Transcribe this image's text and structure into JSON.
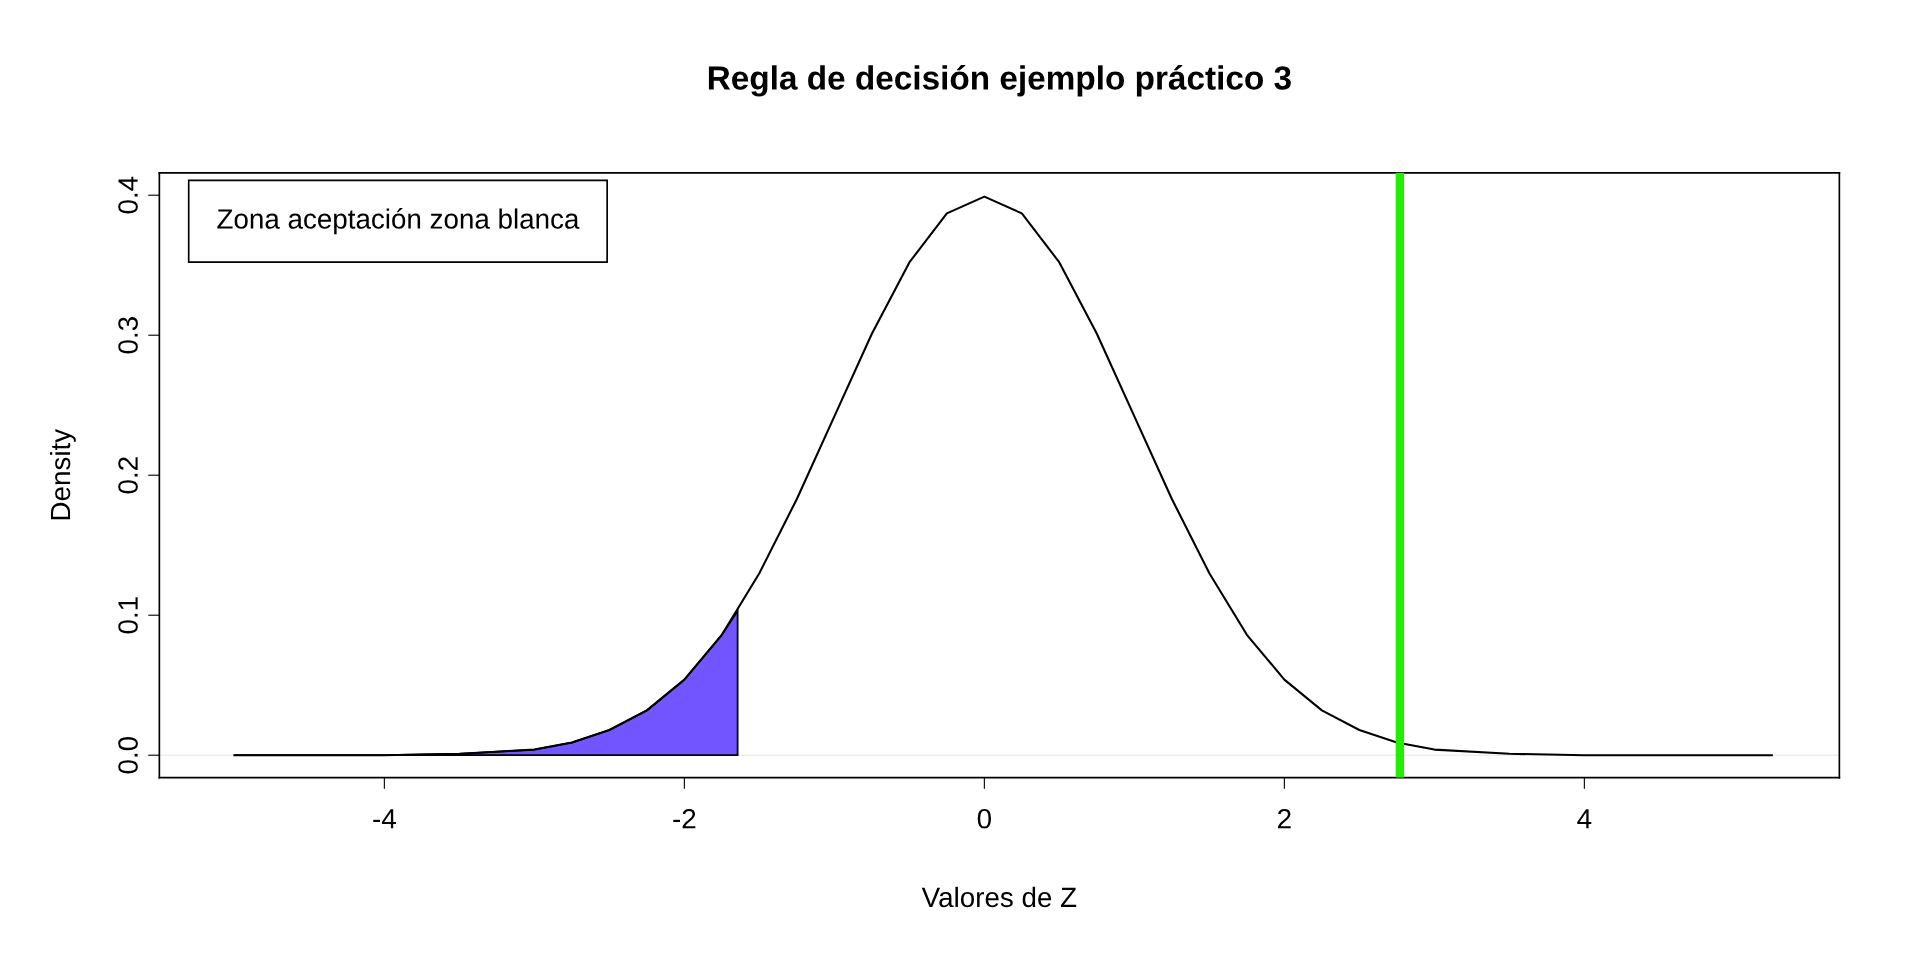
{
  "chart_data": {
    "type": "line",
    "title": "Regla de decisión ejemplo práctico 3",
    "xlabel": "Valores de Z",
    "ylabel": "Density",
    "series": [
      {
        "color": "#000000",
        "x": [
          -5,
          -4.5,
          -4,
          -3.5,
          -3,
          -2.75,
          -2.5,
          -2.25,
          -2,
          -1.75,
          -1.5,
          -1.25,
          -1,
          -0.75,
          -0.5,
          -0.25,
          0,
          0.25,
          0.5,
          0.75,
          1,
          1.25,
          1.5,
          1.75,
          2,
          2.25,
          2.5,
          2.75,
          3,
          3.5,
          4,
          4.5,
          5,
          5.25
        ],
        "values": [
          0,
          0,
          0,
          0.001,
          0.004,
          0.009,
          0.018,
          0.032,
          0.054,
          0.086,
          0.13,
          0.183,
          0.242,
          0.301,
          0.352,
          0.387,
          0.399,
          0.387,
          0.352,
          0.301,
          0.242,
          0.183,
          0.13,
          0.086,
          0.054,
          0.032,
          0.018,
          0.009,
          0.004,
          0.001,
          0,
          0,
          0,
          0
        ]
      },
      {
        "type": "area",
        "color": "#7355ff",
        "x": [
          -5,
          -4,
          -3.5,
          -3,
          -2.75,
          -2.5,
          -2.25,
          -2,
          -1.75,
          -1.645
        ],
        "values": [
          0,
          0,
          0.001,
          0.004,
          0.009,
          0.018,
          0.032,
          0.054,
          0.086,
          0.103
        ]
      }
    ],
    "xlim": [
      -5.5,
      5.7
    ],
    "ylim": [
      -0.016,
      0.416
    ],
    "xticks": [
      -4,
      -2,
      0,
      2,
      4
    ],
    "yticks": [
      {
        "value": 0,
        "label": "0.0"
      },
      0.1,
      0.2,
      0.3,
      0.4
    ],
    "ref_lines": [
      {
        "axis": "x",
        "value": 2.77,
        "color": "#22ee00"
      },
      {
        "axis": "y",
        "value": 0,
        "color": "#eeeeee"
      }
    ],
    "annotations": [
      "Zona aceptación zona blanca"
    ],
    "grid": false
  }
}
